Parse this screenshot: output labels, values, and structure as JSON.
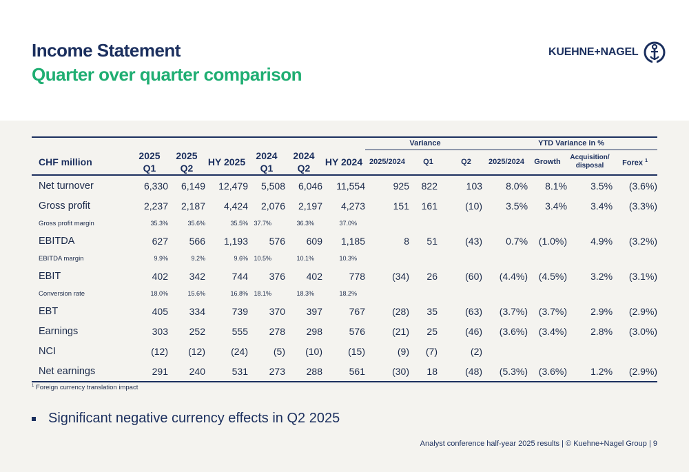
{
  "title": "Income Statement",
  "subtitle": "Quarter over quarter comparison",
  "logo_text": "KUEHNE+NAGEL",
  "table": {
    "corner_label": "CHF million",
    "group_variance": "Variance",
    "group_ytd": "YTD Variance in %",
    "columns": [
      {
        "line1": "2025",
        "line2": "Q1"
      },
      {
        "line1": "2025",
        "line2": "Q2"
      },
      {
        "line1": "HY 2025",
        "line2": ""
      },
      {
        "line1": "2024",
        "line2": "Q1"
      },
      {
        "line1": "2024",
        "line2": "Q2"
      },
      {
        "line1": "HY 2024",
        "line2": ""
      },
      {
        "line1": "2025/2024",
        "line2": ""
      },
      {
        "line1": "Q1",
        "line2": ""
      },
      {
        "line1": "Q2",
        "line2": ""
      },
      {
        "line1": "2025/2024",
        "line2": ""
      },
      {
        "line1": "Growth",
        "line2": ""
      },
      {
        "line1": "Acquisition/",
        "line2": "disposal"
      },
      {
        "line1": "Forex",
        "line2": "",
        "sup": "1"
      }
    ],
    "rows": [
      {
        "label": "Net turnover",
        "kind": "main",
        "cells": [
          "6,330",
          "6,149",
          "12,479",
          "5,508",
          "6,046",
          "11,554",
          "925",
          "822",
          "103",
          "8.0%",
          "8.1%",
          "3.5%",
          "(3.6%)"
        ]
      },
      {
        "label": "Gross profit",
        "kind": "main",
        "cells": [
          "2,237",
          "2,187",
          "4,424",
          "2,076",
          "2,197",
          "4,273",
          "151",
          "161",
          "(10)",
          "3.5%",
          "3.4%",
          "3.4%",
          "(3.3%)"
        ]
      },
      {
        "label": "Gross profit margin",
        "kind": "sub",
        "cells": [
          "35.3%",
          "35.6%",
          "35.5%",
          "37.7%",
          "36.3%",
          "37.0%",
          "",
          "",
          "",
          "",
          "",
          "",
          ""
        ]
      },
      {
        "label": "EBITDA",
        "kind": "main",
        "cells": [
          "627",
          "566",
          "1,193",
          "576",
          "609",
          "1,185",
          "8",
          "51",
          "(43)",
          "0.7%",
          "(1.0%)",
          "4.9%",
          "(3.2%)"
        ]
      },
      {
        "label": "EBITDA margin",
        "kind": "sub",
        "cells": [
          "9.9%",
          "9.2%",
          "9.6%",
          "10.5%",
          "10.1%",
          "10.3%",
          "",
          "",
          "",
          "",
          "",
          "",
          ""
        ]
      },
      {
        "label": "EBIT",
        "kind": "main",
        "cells": [
          "402",
          "342",
          "744",
          "376",
          "402",
          "778",
          "(34)",
          "26",
          "(60)",
          "(4.4%)",
          "(4.5%)",
          "3.2%",
          "(3.1%)"
        ]
      },
      {
        "label": "Conversion rate",
        "kind": "sub",
        "cells": [
          "18.0%",
          "15.6%",
          "16.8%",
          "18.1%",
          "18.3%",
          "18.2%",
          "",
          "",
          "",
          "",
          "",
          "",
          ""
        ]
      },
      {
        "label": "EBT",
        "kind": "main",
        "cells": [
          "405",
          "334",
          "739",
          "370",
          "397",
          "767",
          "(28)",
          "35",
          "(63)",
          "(3.7%)",
          "(3.7%)",
          "2.9%",
          "(2.9%)"
        ]
      },
      {
        "label": "Earnings",
        "kind": "main",
        "cells": [
          "303",
          "252",
          "555",
          "278",
          "298",
          "576",
          "(21)",
          "25",
          "(46)",
          "(3.6%)",
          "(3.4%)",
          "2.8%",
          "(3.0%)"
        ]
      },
      {
        "label": "NCI",
        "kind": "main",
        "cells": [
          "(12)",
          "(12)",
          "(24)",
          "(5)",
          "(10)",
          "(15)",
          "(9)",
          "(7)",
          "(2)",
          "",
          "",
          "",
          ""
        ]
      },
      {
        "label": "Net earnings",
        "kind": "main",
        "cells": [
          "291",
          "240",
          "531",
          "273",
          "288",
          "561",
          "(30)",
          "18",
          "(48)",
          "(5.3%)",
          "(3.6%)",
          "1.2%",
          "(2.9%)"
        ]
      }
    ]
  },
  "footnote": {
    "sup": "1",
    "text": "Foreign currency translation impact"
  },
  "bullet": "Significant negative currency effects in Q2 2025",
  "footer": "Analyst conference half-year 2025 results | © Kuehne+Nagel Group | 9",
  "colors": {
    "navy": "#1b2f5e",
    "green": "#1fae72",
    "background": "#f4f3ef"
  }
}
